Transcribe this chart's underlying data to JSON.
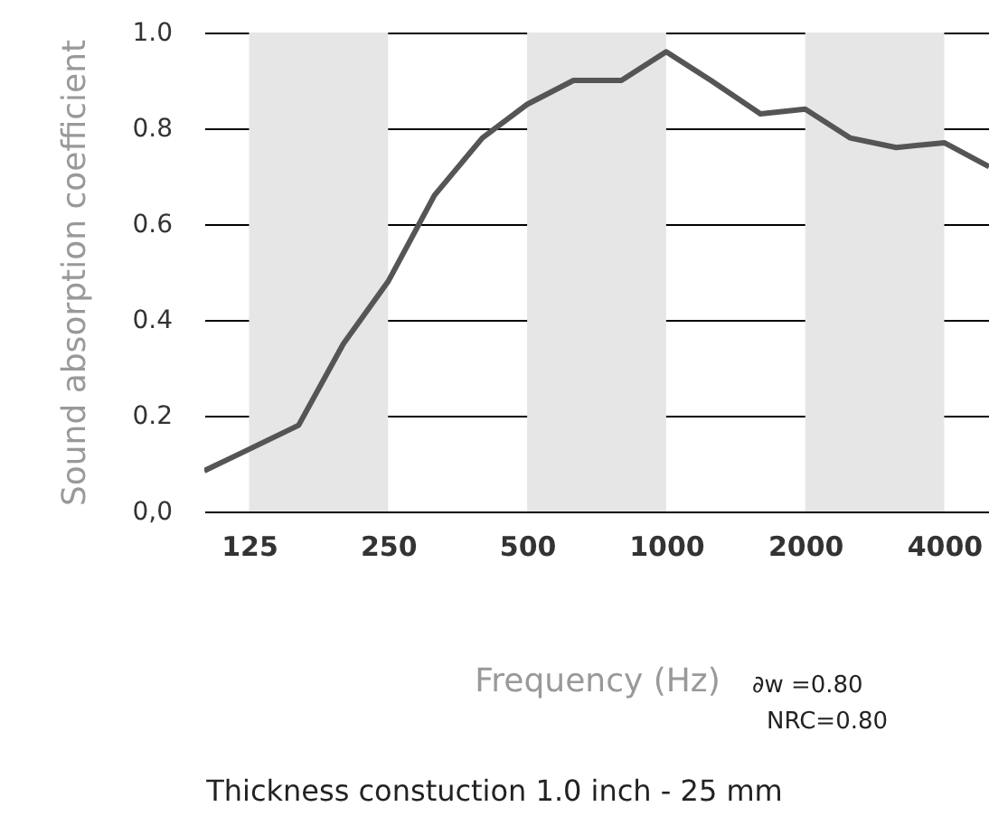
{
  "chart_data": {
    "type": "line",
    "xlabel": "Frequency (Hz)",
    "ylabel": "Sound absorption coefficient",
    "x": [
      100,
      125,
      160,
      200,
      250,
      315,
      400,
      500,
      630,
      800,
      1000,
      1250,
      1600,
      2000,
      2500,
      3150,
      4000,
      5000
    ],
    "series": [
      {
        "color": "#555555",
        "values": [
          0.085,
          0.13,
          0.18,
          0.35,
          0.48,
          0.66,
          0.78,
          0.85,
          0.9,
          0.9,
          0.96,
          0.9,
          0.83,
          0.84,
          0.78,
          0.76,
          0.77,
          0.72
        ]
      }
    ],
    "log": "x",
    "xlim": [
      100,
      5000
    ],
    "xticks": [
      125,
      250,
      500,
      1000,
      2000,
      4000
    ],
    "ylim": [
      0,
      1
    ],
    "yticks": [
      {
        "value": 0,
        "label": "0,0"
      },
      0.2,
      0.4,
      0.6,
      0.8,
      {
        "value": 1,
        "label": "1.0"
      }
    ],
    "grid": "y",
    "marker": "none",
    "line_style": "solid",
    "bands": [
      {
        "axis": "x",
        "from": 125,
        "to": 250,
        "color": "#e6e6e6"
      },
      {
        "axis": "x",
        "from": 500,
        "to": 1000,
        "color": "#e6e6e6"
      },
      {
        "axis": "x",
        "from": 2000,
        "to": 4000,
        "color": "#e6e6e6"
      }
    ],
    "annotations": [
      "∂w =0.80",
      "NRC=0.80",
      "Thickness constuction 1.0 inch - 25 mm"
    ]
  }
}
